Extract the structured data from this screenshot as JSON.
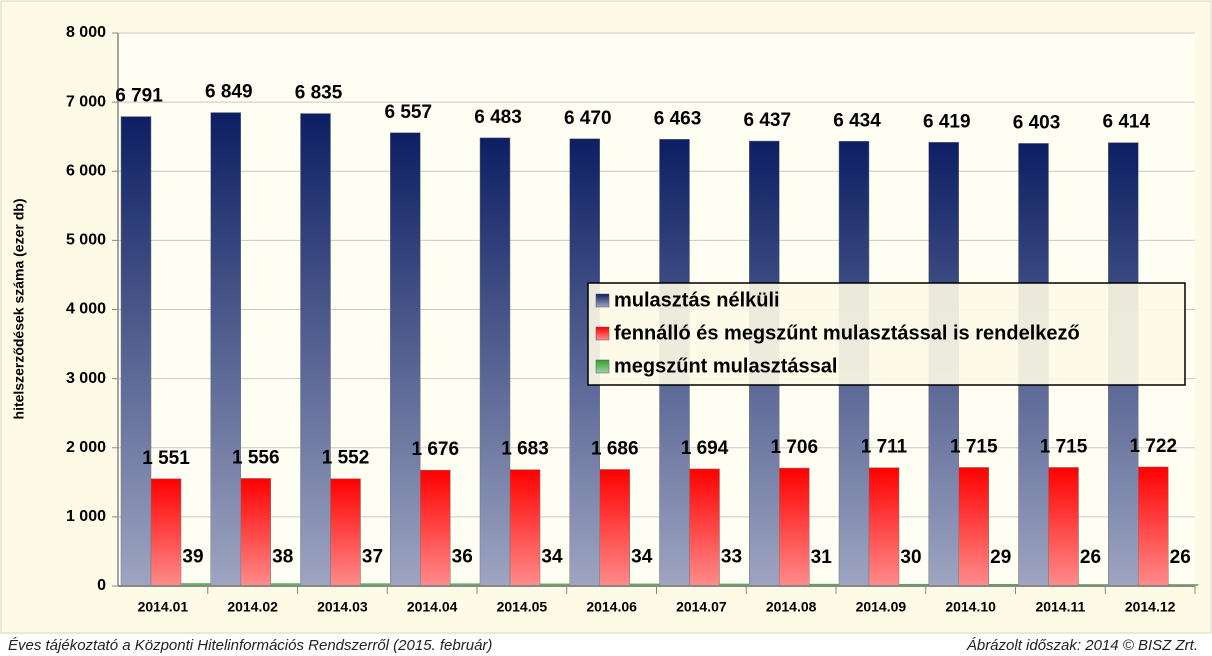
{
  "chart_data": {
    "type": "bar",
    "y_label": "hitelszerződések száma (ezer db)",
    "categories": [
      "2014.01",
      "2014.02",
      "2014.03",
      "2014.04",
      "2014.05",
      "2014.06",
      "2014.07",
      "2014.08",
      "2014.09",
      "2014.10",
      "2014.11",
      "2014.12"
    ],
    "series": [
      {
        "name": "mulasztás nélküli",
        "color": "#0d1f63",
        "values": [
          6791,
          6849,
          6835,
          6557,
          6483,
          6470,
          6463,
          6437,
          6434,
          6419,
          6403,
          6414
        ],
        "value_labels": [
          "6 791",
          "6 849",
          "6 835",
          "6 557",
          "6 483",
          "6 470",
          "6 463",
          "6 437",
          "6 434",
          "6 419",
          "6 403",
          "6 414"
        ]
      },
      {
        "name": "fennálló és megszűnt mulasztással is rendelkező",
        "color": "#ff0000",
        "values": [
          1551,
          1556,
          1552,
          1676,
          1683,
          1686,
          1694,
          1706,
          1711,
          1715,
          1715,
          1722
        ],
        "value_labels": [
          "1 551",
          "1 556",
          "1 552",
          "1 676",
          "1 683",
          "1 686",
          "1 694",
          "1 706",
          "1 711",
          "1 715",
          "1 715",
          "1 722"
        ]
      },
      {
        "name": "megszűnt mulasztással",
        "color": "#2ea02e",
        "values": [
          39,
          38,
          37,
          36,
          34,
          34,
          33,
          31,
          30,
          29,
          26,
          26
        ]
      }
    ],
    "ylim": [
      0,
      8000
    ],
    "yticks": [
      0,
      {
        "value": 1000,
        "label": "1 000"
      },
      {
        "value": 2000,
        "label": "2 000"
      },
      {
        "value": 3000,
        "label": "3 000"
      },
      {
        "value": 4000,
        "label": "4 000"
      },
      {
        "value": 5000,
        "label": "5 000"
      },
      {
        "value": 6000,
        "label": "6 000"
      },
      {
        "value": 7000,
        "label": "7 000"
      },
      {
        "value": 8000,
        "label": "8 000"
      }
    ],
    "grid": true,
    "legend": "right",
    "footer_left": "Éves tájékoztató a Központi Hitelinformációs Rendszerről (2015. február)",
    "footer_right": "Ábrázolt időszak: 2014 © BISZ Zrt."
  }
}
